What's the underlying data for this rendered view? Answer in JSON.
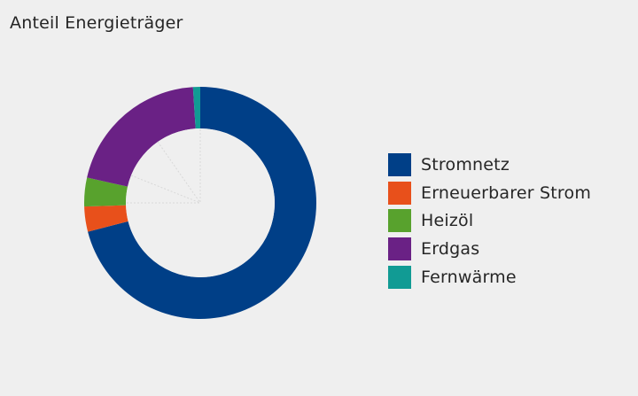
{
  "chart_data": {
    "type": "pie",
    "variant": "donut",
    "title": "Anteil Energieträger",
    "legend_position": "right",
    "series": [
      {
        "name": "Stromnetz",
        "value": 71.0,
        "color": "#003f87"
      },
      {
        "name": "Erneuerbarer Strom",
        "value": 3.5,
        "color": "#e8501b"
      },
      {
        "name": "Heizöl",
        "value": 4.0,
        "color": "#58a22d"
      },
      {
        "name": "Erdgas",
        "value": 20.5,
        "color": "#6a2185"
      },
      {
        "name": "Fernwärme",
        "value": 1.0,
        "color": "#119b94"
      }
    ]
  }
}
